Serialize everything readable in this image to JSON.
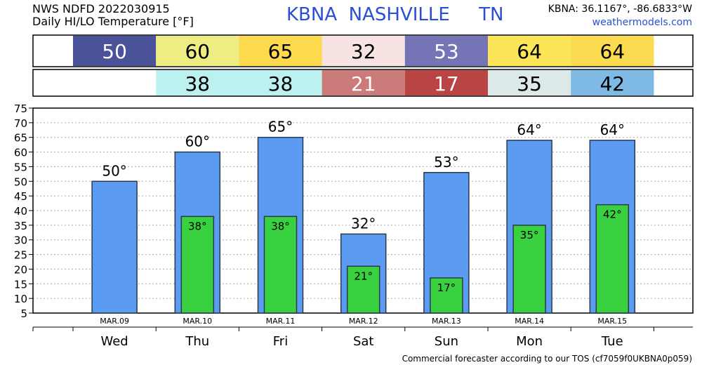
{
  "header": {
    "product": "NWS NDFD 2022030915",
    "subtitle": "Daily HI/LO Temperature [°F]",
    "station_line": "KBNA  NASHVILLE     TN",
    "coords": "KBNA: 36.1167°, -86.6833°W",
    "site": "weathermodels.com"
  },
  "footer": "Commercial forecaster according to our TOS (cf7059f0UKBNA0p059)",
  "colors": {
    "hi_bar": "#5b9cf2",
    "lo_bar": "#39d13f",
    "bar_border": "#2b3a4a",
    "grid": "#aaaaaa"
  },
  "chart_data": {
    "type": "bar",
    "categories": [
      "Wed",
      "Thu",
      "Fri",
      "Sat",
      "Sun",
      "Mon",
      "Tue"
    ],
    "dates": [
      "MAR.09",
      "MAR.10",
      "MAR.11",
      "MAR.12",
      "MAR.13",
      "MAR.14",
      "MAR.15"
    ],
    "series": [
      {
        "values": [
          50,
          60,
          65,
          32,
          53,
          64,
          64
        ]
      },
      {
        "values": [
          null,
          38,
          38,
          21,
          17,
          35,
          42
        ]
      }
    ],
    "hi_labels": [
      "50°",
      "60°",
      "65°",
      "32°",
      "53°",
      "64°",
      "64°"
    ],
    "lo_labels": [
      "",
      "38°",
      "38°",
      "21°",
      "17°",
      "35°",
      "42°"
    ],
    "hi_colors": [
      "#4a5399",
      "#eded83",
      "#fdd94e",
      "#f8e3e3",
      "#7474b7",
      "#fce658",
      "#fbdc50"
    ],
    "lo_colors": [
      "",
      "#bdf1f0",
      "#bdf1f0",
      "#cc7b7b",
      "#b84444",
      "#dde8e8",
      "#7ebae4"
    ],
    "hi_text_colors": [
      "#ffffff",
      "#000000",
      "#000000",
      "#000000",
      "#ffffff",
      "#000000",
      "#000000"
    ],
    "yticks": [
      5,
      10,
      15,
      20,
      25,
      30,
      35,
      40,
      45,
      50,
      55,
      60,
      65,
      70,
      75
    ],
    "ylim": [
      5,
      75
    ],
    "grid": true
  }
}
